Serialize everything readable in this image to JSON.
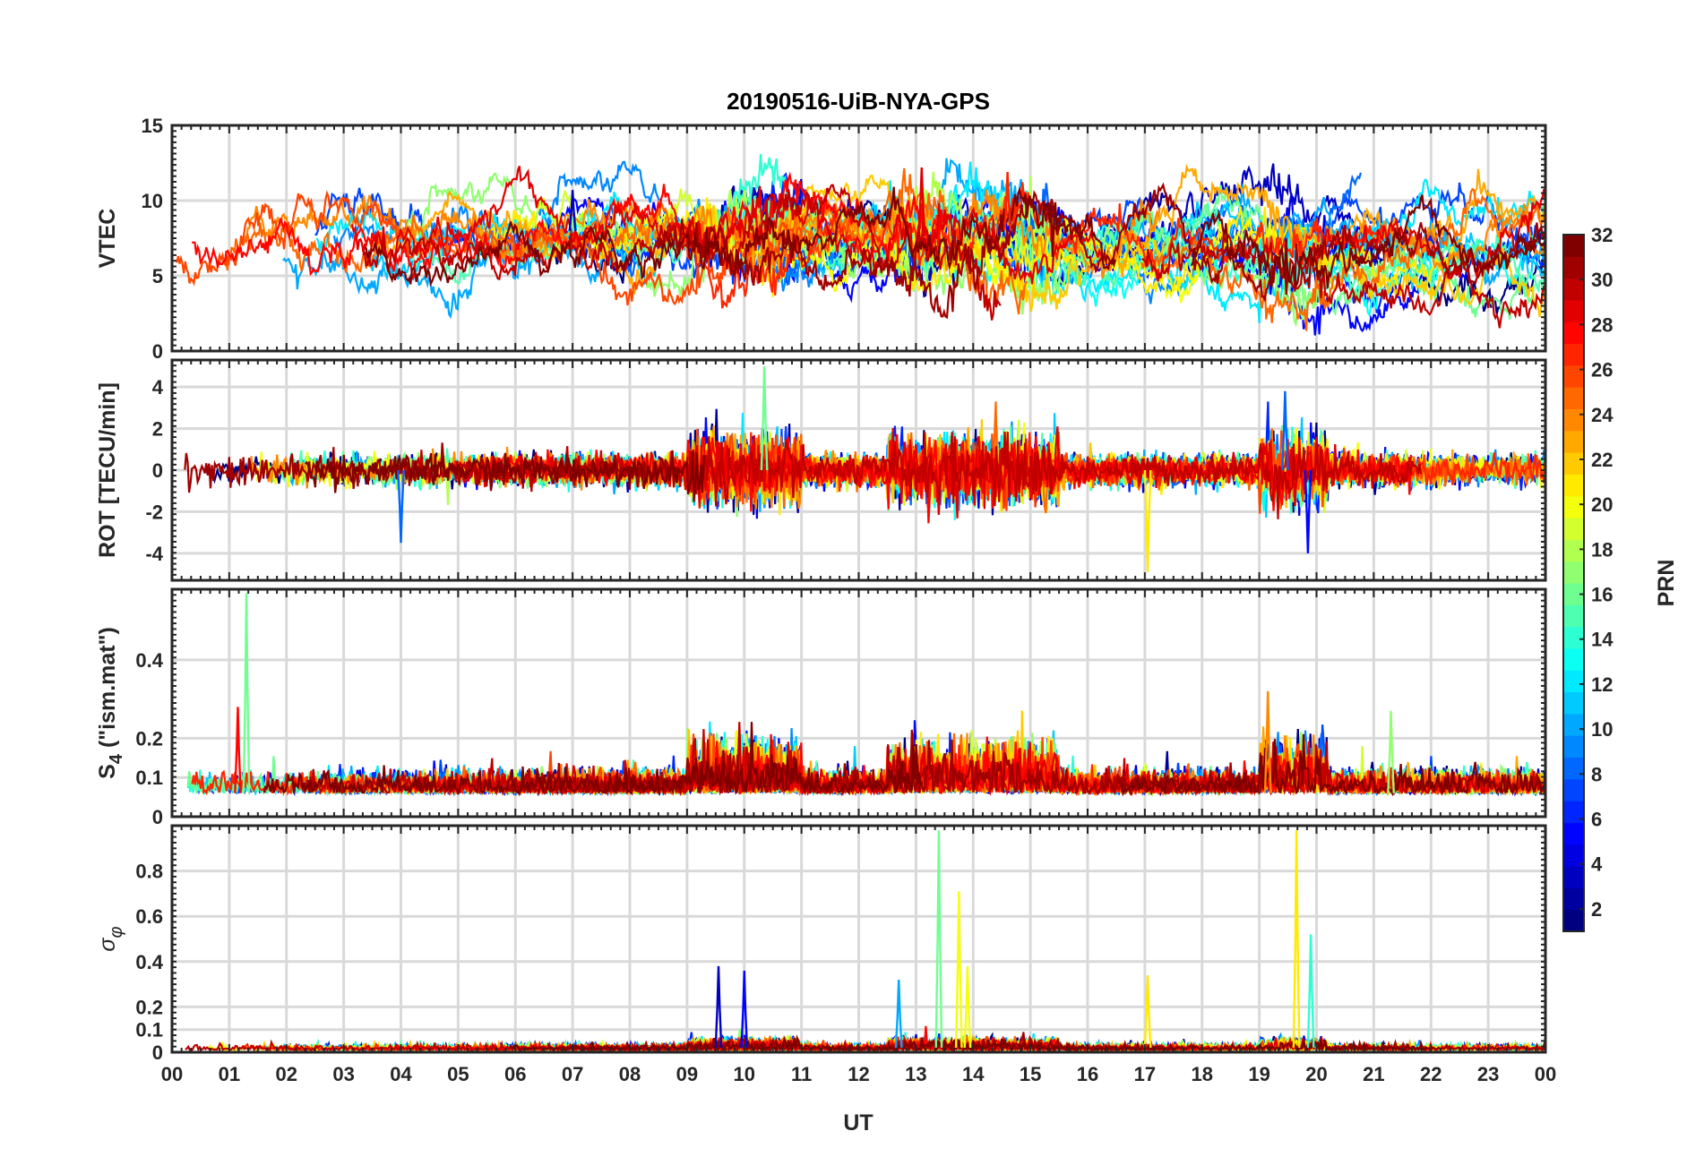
{
  "chart_data": {
    "title": "20190516-UiB-NYA-GPS",
    "type": "line",
    "x_axis": {
      "label": "UT",
      "range_hours": [
        0,
        24
      ],
      "tick_labels": [
        "00",
        "01",
        "02",
        "03",
        "04",
        "05",
        "06",
        "07",
        "08",
        "09",
        "10",
        "11",
        "12",
        "13",
        "14",
        "15",
        "16",
        "17",
        "18",
        "19",
        "20",
        "21",
        "22",
        "23",
        "00"
      ]
    },
    "panels": [
      {
        "key": "vtec",
        "ylabel": "VTEC",
        "ylim": [
          0,
          15
        ],
        "yticks": [
          0,
          5,
          10,
          15
        ],
        "baseline": 7.2,
        "noise": 0.9,
        "grid": true
      },
      {
        "key": "rot",
        "ylabel": "ROT [TECU/min]",
        "ylim": [
          -5.3,
          5.3
        ],
        "yticks": [
          -4,
          -2,
          0,
          2,
          4
        ],
        "baseline": 0,
        "noise": 0.35,
        "grid": true
      },
      {
        "key": "s4",
        "ylabel_main": "S",
        "ylabel_sub": "4",
        "ylabel_rest": " (\"ism.mat\")",
        "ylim": [
          0,
          0.58
        ],
        "yticks": [
          0,
          0.1,
          0.2,
          0.4
        ],
        "baseline": 0.06,
        "noise": 0.025,
        "grid": true
      },
      {
        "key": "sigphi",
        "ylabel_main": "σ",
        "ylabel_sub": "φ",
        "ylim": [
          0,
          1
        ],
        "yticks": [
          0,
          0.1,
          0.2,
          0.4,
          0.6,
          0.8
        ],
        "baseline": 0.02,
        "noise": 0.01,
        "grid": true
      }
    ],
    "colorbar": {
      "label": "PRN",
      "range": [
        1,
        32
      ],
      "tick_labels": [
        "2",
        "4",
        "6",
        "8",
        "10",
        "12",
        "14",
        "16",
        "18",
        "20",
        "22",
        "24",
        "26",
        "28",
        "30",
        "32"
      ],
      "colormap": "jet"
    },
    "notable_peaks": {
      "vtec": [
        {
          "ut": 13.1,
          "value": 12.2,
          "prn": 29
        },
        {
          "ut": 14.6,
          "value": 11.9,
          "prn": 27
        },
        {
          "ut": 7.0,
          "value": 10.7,
          "prn": 3
        }
      ],
      "rot": [
        {
          "ut": 10.35,
          "value": 5.0,
          "prn": 16
        },
        {
          "ut": 19.45,
          "value": 3.8,
          "prn": 8
        },
        {
          "ut": 17.05,
          "value": -4.9,
          "prn": 21
        },
        {
          "ut": 19.85,
          "value": -4.0,
          "prn": 5
        },
        {
          "ut": 4.0,
          "value": -3.5,
          "prn": 8
        }
      ],
      "s4": [
        {
          "ut": 1.3,
          "value": 0.57,
          "prn": 16
        },
        {
          "ut": 1.15,
          "value": 0.28,
          "prn": 28
        },
        {
          "ut": 19.15,
          "value": 0.32,
          "prn": 24
        },
        {
          "ut": 21.3,
          "value": 0.27,
          "prn": 17
        }
      ],
      "sigphi": [
        {
          "ut": 13.4,
          "value": 0.98,
          "prn": 16
        },
        {
          "ut": 19.65,
          "value": 0.98,
          "prn": 21
        },
        {
          "ut": 13.75,
          "value": 0.71,
          "prn": 20
        },
        {
          "ut": 19.9,
          "value": 0.52,
          "prn": 14
        },
        {
          "ut": 9.55,
          "value": 0.38,
          "prn": 3
        },
        {
          "ut": 10.0,
          "value": 0.36,
          "prn": 5
        },
        {
          "ut": 17.05,
          "value": 0.34,
          "prn": 21
        },
        {
          "ut": 12.7,
          "value": 0.32,
          "prn": 10
        },
        {
          "ut": 13.9,
          "value": 0.38,
          "prn": 20
        }
      ]
    }
  }
}
